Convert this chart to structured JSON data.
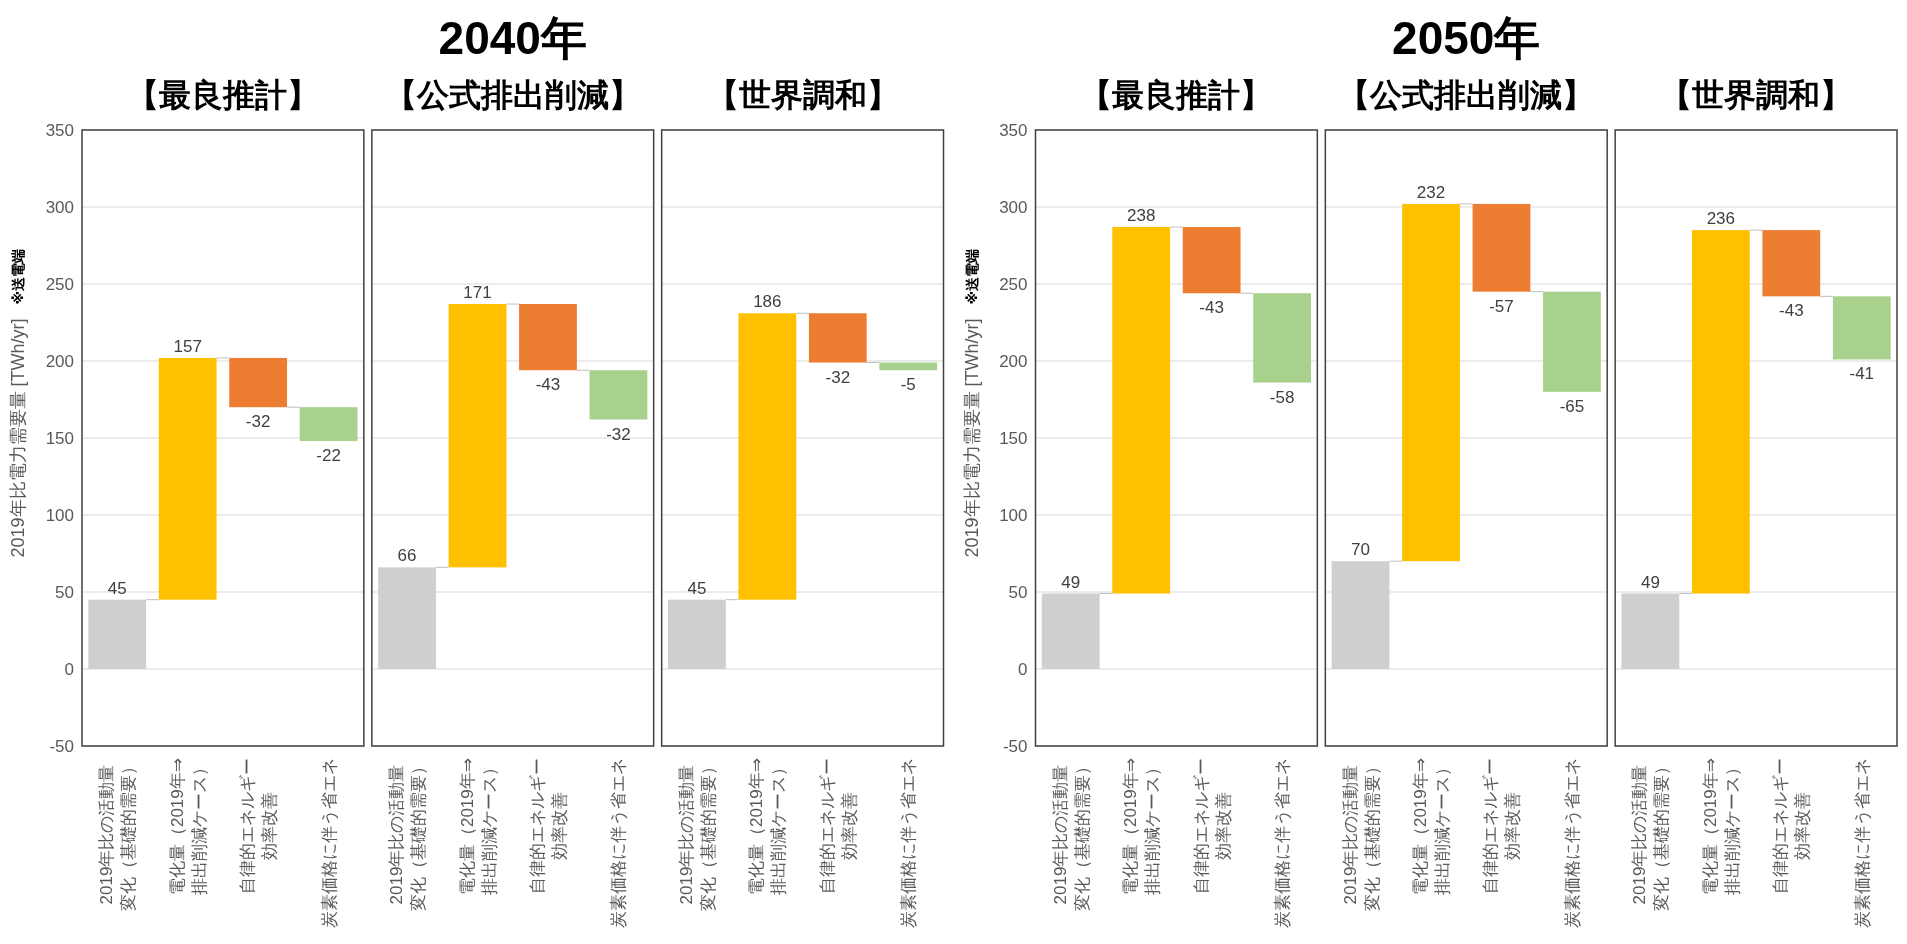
{
  "chart_data": [
    {
      "type": "bar",
      "subtitle": "【最良推計】",
      "ylabel": "2019年比電力需要量 [TWh/yr]",
      "annotations": [
        "※送電端"
      ],
      "categories": [
        "2019年比の活動量変化（基礎的需要）",
        "電化量（2019年⇒排出削減ケース）",
        "自律的エネルギー効率改善",
        "炭素価格に伴う省エネ"
      ],
      "values": [
        45,
        157,
        -32,
        -22
      ],
      "base": [
        0,
        45,
        202,
        170
      ],
      "colors": [
        "#d0cece",
        "#ffc000",
        "#ed7d31",
        "#a9d18e"
      ],
      "data_labels": true,
      "ylim": [
        -50,
        350
      ],
      "yticks": [
        -50,
        0,
        50,
        100,
        150,
        200,
        250,
        300,
        350
      ],
      "grid": "y"
    },
    {
      "type": "bar",
      "title": "2040年",
      "subtitle": "【公式排出削減】",
      "categories": [
        "2019年比の活動量変化（基礎的需要）",
        "電化量（2019年⇒排出削減ケース）",
        "自律的エネルギー効率改善",
        "炭素価格に伴う省エネ"
      ],
      "values": [
        66,
        171,
        -43,
        -32
      ],
      "base": [
        0,
        66,
        237,
        194
      ],
      "colors": [
        "#d0cece",
        "#ffc000",
        "#ed7d31",
        "#a9d18e"
      ],
      "data_labels": true,
      "ylim": [
        -50,
        350
      ],
      "yticks": [
        -50,
        0,
        50,
        100,
        150,
        200,
        250,
        300,
        350
      ],
      "grid": "y",
      "tick_labels": "x"
    },
    {
      "type": "bar",
      "subtitle": "【世界調和】",
      "categories": [
        "2019年比の活動量変化（基礎的需要）",
        "電化量（2019年⇒排出削減ケース）",
        "自律的エネルギー効率改善",
        "炭素価格に伴う省エネ"
      ],
      "values": [
        45,
        186,
        -32,
        -5
      ],
      "base": [
        0,
        45,
        231,
        199
      ],
      "colors": [
        "#d0cece",
        "#ffc000",
        "#ed7d31",
        "#a9d18e"
      ],
      "data_labels": true,
      "ylim": [
        -50,
        350
      ],
      "yticks": [
        -50,
        0,
        50,
        100,
        150,
        200,
        250,
        300,
        350
      ],
      "grid": "y",
      "tick_labels": "x"
    },
    {
      "type": "bar",
      "subtitle": "【最良推計】",
      "ylabel": "2019年比電力需要量 [TWh/yr]",
      "annotations": [
        "※送電端"
      ],
      "categories": [
        "2019年比の活動量変化（基礎的需要）",
        "電化量（2019年⇒排出削減ケース）",
        "自律的エネルギー効率改善",
        "炭素価格に伴う省エネ"
      ],
      "values": [
        49,
        238,
        -43,
        -58
      ],
      "base": [
        0,
        49,
        287,
        244
      ],
      "colors": [
        "#d0cece",
        "#ffc000",
        "#ed7d31",
        "#a9d18e"
      ],
      "data_labels": true,
      "ylim": [
        -50,
        350
      ],
      "yticks": [
        -50,
        0,
        50,
        100,
        150,
        200,
        250,
        300,
        350
      ],
      "grid": "y"
    },
    {
      "type": "bar",
      "title": "2050年",
      "subtitle": "【公式排出削減】",
      "categories": [
        "2019年比の活動量変化（基礎的需要）",
        "電化量（2019年⇒排出削減ケース）",
        "自律的エネルギー効率改善",
        "炭素価格に伴う省エネ"
      ],
      "values": [
        70,
        232,
        -57,
        -65
      ],
      "base": [
        0,
        70,
        302,
        245
      ],
      "colors": [
        "#d0cece",
        "#ffc000",
        "#ed7d31",
        "#a9d18e"
      ],
      "data_labels": true,
      "ylim": [
        -50,
        350
      ],
      "yticks": [
        -50,
        0,
        50,
        100,
        150,
        200,
        250,
        300,
        350
      ],
      "grid": "y",
      "tick_labels": "x"
    },
    {
      "type": "bar",
      "subtitle": "【世界調和】",
      "categories": [
        "2019年比の活動量変化（基礎的需要）",
        "電化量（2019年⇒排出削減ケース）",
        "自律的エネルギー効率改善",
        "炭素価格に伴う省エネ"
      ],
      "values": [
        49,
        236,
        -43,
        -41
      ],
      "base": [
        0,
        49,
        285,
        242
      ],
      "colors": [
        "#d0cece",
        "#ffc000",
        "#ed7d31",
        "#a9d18e"
      ],
      "data_labels": true,
      "ylim": [
        -50,
        350
      ],
      "yticks": [
        -50,
        0,
        50,
        100,
        150,
        200,
        250,
        300,
        350
      ],
      "grid": "y",
      "tick_labels": "x"
    }
  ]
}
